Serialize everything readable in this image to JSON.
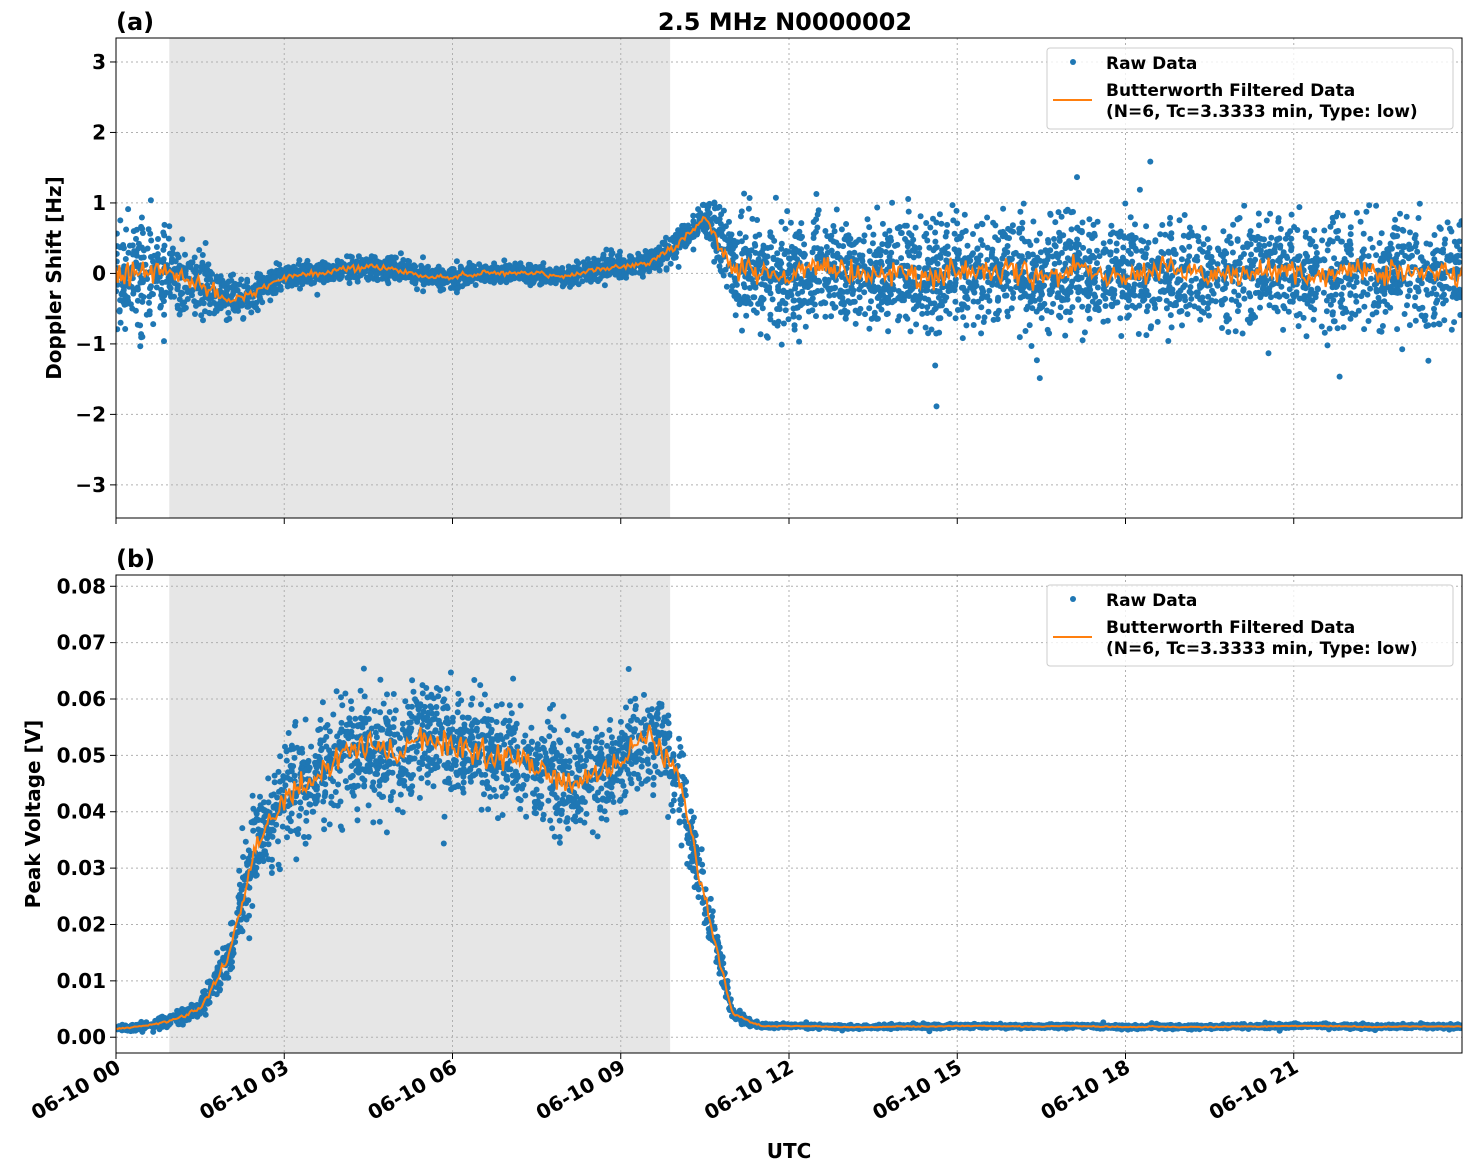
{
  "chart_data": [
    {
      "type": "scatter+line",
      "panel_label": "(a)",
      "title": "2.5 MHz N0000002",
      "ylabel": "Doppler Shift [Hz]",
      "xlabel": "",
      "xlim_hours": [
        0,
        24
      ],
      "ylim": [
        -3.47,
        3.34
      ],
      "yticks": [
        3,
        2,
        1,
        0,
        -1,
        -2,
        -3
      ],
      "ytick_labels": [
        "3",
        "2",
        "1",
        "0",
        "−1",
        "−2",
        "−3"
      ],
      "grid": true,
      "legend_position": "top-right",
      "shaded_region_hours": [
        0.95,
        9.88
      ],
      "colors": {
        "raw": "#1f77b4",
        "filtered": "#ff7f0e",
        "shade": "#e6e6e6"
      },
      "x_hours": [
        0,
        0.5,
        1,
        1.5,
        2,
        2.5,
        3,
        3.5,
        4,
        4.5,
        5,
        5.5,
        6,
        6.5,
        7,
        7.5,
        8,
        8.5,
        9,
        9.5,
        10,
        10.5,
        11,
        11.5,
        12,
        12.5,
        13,
        13.5,
        14,
        14.5,
        15,
        15.5,
        16,
        16.5,
        17,
        17.5,
        18,
        18.5,
        19,
        19.5,
        20,
        20.5,
        21,
        21.5,
        22,
        22.5,
        23,
        23.5,
        24
      ],
      "series": [
        {
          "name": "Butterworth Filtered Data",
          "legend_line2": "(N=6, Tc=3.3333 min, Type: low)",
          "kind": "line",
          "values": [
            -0.05,
            0.05,
            0.0,
            -0.15,
            -0.4,
            -0.25,
            -0.05,
            0.0,
            0.05,
            0.1,
            0.05,
            -0.05,
            -0.05,
            0.0,
            0.0,
            0.0,
            -0.05,
            0.05,
            0.1,
            0.15,
            0.4,
            0.8,
            0.1,
            0.0,
            -0.05,
            0.05,
            0.0,
            -0.05,
            0.05,
            -0.1,
            0.05,
            0.0,
            0.05,
            -0.05,
            0.05,
            0.0,
            -0.05,
            0.0,
            0.05,
            -0.05,
            0.0,
            0.05,
            0.0,
            -0.05,
            0.05,
            0.0,
            0.05,
            0.0,
            0.0
          ]
        },
        {
          "name": "Raw Data",
          "kind": "scatter",
          "spread_hz": [
            1.4,
            1.3,
            0.9,
            0.75,
            0.65,
            0.45,
            0.3,
            0.28,
            0.28,
            0.3,
            0.28,
            0.28,
            0.25,
            0.25,
            0.25,
            0.25,
            0.25,
            0.28,
            0.3,
            0.3,
            0.35,
            0.45,
            1.3,
            1.3,
            1.3,
            1.3,
            1.3,
            1.3,
            1.3,
            1.3,
            1.3,
            1.3,
            1.3,
            1.3,
            1.3,
            1.3,
            1.3,
            1.3,
            1.3,
            1.3,
            1.3,
            1.3,
            1.3,
            1.3,
            1.3,
            1.3,
            1.3,
            1.3,
            1.3
          ]
        }
      ]
    },
    {
      "type": "scatter+line",
      "panel_label": "(b)",
      "title": "",
      "ylabel": "Peak Voltage [V]",
      "xlabel": "UTC",
      "xlim_hours": [
        0,
        24
      ],
      "ylim": [
        -0.0028,
        0.082
      ],
      "yticks": [
        0.08,
        0.07,
        0.06,
        0.05,
        0.04,
        0.03,
        0.02,
        0.01,
        0.0
      ],
      "ytick_labels": [
        "0.08",
        "0.07",
        "0.06",
        "0.05",
        "0.04",
        "0.03",
        "0.02",
        "0.01",
        "0.00"
      ],
      "xticks_hours": [
        0,
        3,
        6,
        9,
        12,
        15,
        18,
        21
      ],
      "xtick_labels": [
        "06-10 00",
        "06-10 03",
        "06-10 06",
        "06-10 09",
        "06-10 12",
        "06-10 15",
        "06-10 18",
        "06-10 21"
      ],
      "grid": true,
      "legend_position": "top-right",
      "shaded_region_hours": [
        0.95,
        9.88
      ],
      "colors": {
        "raw": "#1f77b4",
        "filtered": "#ff7f0e",
        "shade": "#e6e6e6"
      },
      "x_hours": [
        0,
        0.5,
        1,
        1.5,
        2,
        2.5,
        3,
        3.5,
        4,
        4.5,
        5,
        5.5,
        6,
        6.5,
        7,
        7.5,
        8,
        8.5,
        9,
        9.5,
        10,
        10.5,
        11,
        11.5,
        12,
        12.5,
        13,
        13.5,
        14,
        14.5,
        15,
        15.5,
        16,
        16.5,
        17,
        17.5,
        18,
        18.5,
        19,
        19.5,
        20,
        20.5,
        21,
        21.5,
        22,
        22.5,
        23,
        23.5,
        24
      ],
      "series": [
        {
          "name": "Butterworth Filtered Data",
          "legend_line2": "(N=6, Tc=3.3333 min, Type: low)",
          "kind": "line",
          "values": [
            0.0015,
            0.002,
            0.003,
            0.005,
            0.014,
            0.034,
            0.043,
            0.046,
            0.05,
            0.052,
            0.05,
            0.053,
            0.052,
            0.05,
            0.05,
            0.048,
            0.045,
            0.046,
            0.049,
            0.054,
            0.048,
            0.024,
            0.004,
            0.002,
            0.002,
            0.0019,
            0.0018,
            0.0018,
            0.0019,
            0.0019,
            0.002,
            0.002,
            0.0019,
            0.0019,
            0.002,
            0.0019,
            0.0018,
            0.0019,
            0.0018,
            0.0018,
            0.0019,
            0.0019,
            0.002,
            0.002,
            0.0019,
            0.0018,
            0.0019,
            0.0019,
            0.0019
          ]
        },
        {
          "name": "Raw Data",
          "kind": "scatter",
          "spread_v": [
            0.0008,
            0.0012,
            0.002,
            0.003,
            0.008,
            0.014,
            0.016,
            0.016,
            0.017,
            0.017,
            0.017,
            0.017,
            0.017,
            0.017,
            0.017,
            0.016,
            0.016,
            0.016,
            0.016,
            0.016,
            0.014,
            0.01,
            0.002,
            0.0008,
            0.0007,
            0.0006,
            0.0006,
            0.0006,
            0.0006,
            0.0006,
            0.0006,
            0.0006,
            0.0006,
            0.0006,
            0.0006,
            0.0006,
            0.0006,
            0.0006,
            0.0006,
            0.0006,
            0.0006,
            0.0006,
            0.0006,
            0.0006,
            0.0006,
            0.0006,
            0.0006,
            0.0006,
            0.0006
          ]
        }
      ]
    }
  ]
}
